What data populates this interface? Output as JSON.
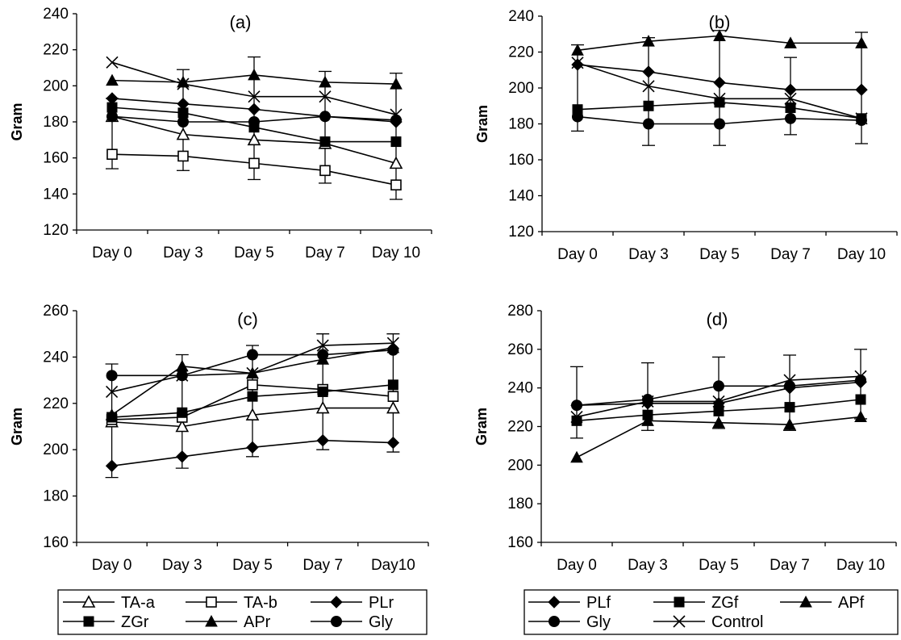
{
  "chart_data": [
    {
      "panel": "(a)",
      "type": "line",
      "ylabel": "Gram",
      "categories": [
        "Day 0",
        "Day 3",
        "Day 5",
        "Day 7",
        "Day 10"
      ],
      "ylim": [
        120,
        240
      ],
      "yticks": [
        120,
        140,
        160,
        180,
        200,
        220,
        240
      ],
      "series": [
        {
          "name": "TA-a",
          "marker": "triangle-open",
          "values": [
            183,
            173,
            170,
            168,
            157
          ]
        },
        {
          "name": "TA-b",
          "marker": "square-open",
          "values": [
            162,
            161,
            157,
            153,
            145
          ]
        },
        {
          "name": "PLr",
          "marker": "diamond",
          "values": [
            193,
            190,
            187,
            183,
            180
          ]
        },
        {
          "name": "ZGr",
          "marker": "square",
          "values": [
            188,
            185,
            177,
            169,
            169
          ]
        },
        {
          "name": "APr",
          "marker": "triangle",
          "values": [
            203,
            202,
            206,
            202,
            201
          ]
        },
        {
          "name": "Gly",
          "marker": "circle",
          "values": [
            183,
            180,
            180,
            183,
            181
          ]
        },
        {
          "name": "Control",
          "marker": "x",
          "values": [
            213,
            201,
            194,
            194,
            184
          ]
        }
      ],
      "error_bars": [
        {
          "x": 0,
          "lo": 154,
          "hi": 193
        },
        {
          "x": 1,
          "lo": 153,
          "hi": 209
        },
        {
          "x": 2,
          "lo": 148,
          "hi": 216
        },
        {
          "x": 3,
          "lo": 146,
          "hi": 208
        },
        {
          "x": 4,
          "lo": 137,
          "hi": 207
        }
      ]
    },
    {
      "panel": "(b)",
      "type": "line",
      "ylabel": "Gram",
      "categories": [
        "Day 0",
        "Day 3",
        "Day 5",
        "Day 7",
        "Day 10"
      ],
      "ylim": [
        120,
        240
      ],
      "yticks": [
        120,
        140,
        160,
        180,
        200,
        220,
        240
      ],
      "series": [
        {
          "name": "PLf",
          "marker": "diamond",
          "values": [
            213,
            209,
            203,
            199,
            199
          ]
        },
        {
          "name": "ZGf",
          "marker": "square",
          "values": [
            188,
            190,
            192,
            189,
            183
          ]
        },
        {
          "name": "APf",
          "marker": "triangle",
          "values": [
            221,
            226,
            229,
            225,
            225
          ]
        },
        {
          "name": "Gly",
          "marker": "circle",
          "values": [
            184,
            180,
            180,
            183,
            182
          ]
        },
        {
          "name": "Control",
          "marker": "x",
          "values": [
            214,
            201,
            194,
            194,
            183
          ]
        }
      ],
      "error_bars": [
        {
          "x": 0,
          "lo": 176,
          "hi": 224
        },
        {
          "x": 1,
          "lo": 168,
          "hi": 228
        },
        {
          "x": 2,
          "lo": 168,
          "hi": 232
        },
        {
          "x": 3,
          "lo": 174,
          "hi": 217
        },
        {
          "x": 4,
          "lo": 169,
          "hi": 231
        }
      ]
    },
    {
      "panel": "(c)",
      "type": "line",
      "ylabel": "Gram",
      "categories": [
        "Day 0",
        "Day 3",
        "Day 5",
        "Day 7",
        "Day10"
      ],
      "ylim": [
        160,
        260
      ],
      "yticks": [
        160,
        180,
        200,
        220,
        240,
        260
      ],
      "series": [
        {
          "name": "TA-a",
          "marker": "triangle-open",
          "values": [
            212,
            210,
            215,
            218,
            218
          ]
        },
        {
          "name": "TA-b",
          "marker": "square-open",
          "values": [
            213,
            214,
            228,
            226,
            223
          ]
        },
        {
          "name": "PLr",
          "marker": "diamond",
          "values": [
            193,
            197,
            201,
            204,
            203
          ]
        },
        {
          "name": "ZGr",
          "marker": "square",
          "values": [
            214,
            216,
            223,
            225,
            228
          ]
        },
        {
          "name": "APr",
          "marker": "triangle",
          "values": [
            215,
            236,
            233,
            239,
            244
          ]
        },
        {
          "name": "Gly",
          "marker": "circle",
          "values": [
            232,
            232,
            241,
            241,
            243
          ]
        },
        {
          "name": "Control",
          "marker": "x",
          "values": [
            225,
            232,
            233,
            245,
            246
          ]
        }
      ],
      "error_bars": [
        {
          "x": 0,
          "lo": 188,
          "hi": 237
        },
        {
          "x": 1,
          "lo": 192,
          "hi": 241
        },
        {
          "x": 2,
          "lo": 197,
          "hi": 245
        },
        {
          "x": 3,
          "lo": 200,
          "hi": 250
        },
        {
          "x": 4,
          "lo": 199,
          "hi": 250
        }
      ]
    },
    {
      "panel": "(d)",
      "type": "line",
      "ylabel": "Gram",
      "categories": [
        "Day 0",
        "Day 3",
        "Day 5",
        "Day 7",
        "Day 10"
      ],
      "ylim": [
        160,
        280
      ],
      "yticks": [
        160,
        180,
        200,
        220,
        240,
        260,
        280
      ],
      "series": [
        {
          "name": "PLf",
          "marker": "diamond",
          "values": [
            231,
            232,
            232,
            240,
            243
          ]
        },
        {
          "name": "ZGf",
          "marker": "square",
          "values": [
            223,
            226,
            228,
            230,
            234
          ]
        },
        {
          "name": "APf",
          "marker": "triangle",
          "values": [
            204,
            223,
            222,
            221,
            225
          ]
        },
        {
          "name": "Gly",
          "marker": "circle",
          "values": [
            231,
            234,
            241,
            241,
            244
          ]
        },
        {
          "name": "Control",
          "marker": "x",
          "values": [
            225,
            233,
            233,
            244,
            246
          ]
        }
      ],
      "error_bars": [
        {
          "x": 0,
          "lo": 214,
          "hi": 251
        },
        {
          "x": 1,
          "lo": 218,
          "hi": 253
        },
        {
          "x": 2,
          "lo": 219,
          "hi": 256
        },
        {
          "x": 3,
          "lo": 218,
          "hi": 257
        },
        {
          "x": 4,
          "lo": 224,
          "hi": 260
        }
      ]
    }
  ],
  "legends": [
    {
      "name": "legend-left",
      "entries": [
        {
          "label": "TA-a",
          "marker": "triangle-open"
        },
        {
          "label": "TA-b",
          "marker": "square-open"
        },
        {
          "label": "PLr",
          "marker": "diamond"
        },
        {
          "label": "ZGr",
          "marker": "square"
        },
        {
          "label": "APr",
          "marker": "triangle"
        },
        {
          "label": "Gly",
          "marker": "circle"
        }
      ]
    },
    {
      "name": "legend-right",
      "entries": [
        {
          "label": "PLf",
          "marker": "diamond"
        },
        {
          "label": "ZGf",
          "marker": "square"
        },
        {
          "label": "APf",
          "marker": "triangle"
        },
        {
          "label": "Gly",
          "marker": "circle"
        },
        {
          "label": "Control",
          "marker": "x"
        }
      ]
    }
  ]
}
